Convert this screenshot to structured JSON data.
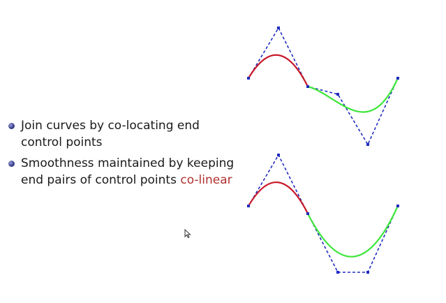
{
  "bullets": [
    {
      "line1": "Join curves by co-locating end",
      "line2": "control points",
      "line2_highlight": ""
    },
    {
      "line1": "Smoothness maintained by keeping",
      "line2": "end pairs of control points ",
      "line2_highlight": "co-linear"
    }
  ],
  "colors": {
    "first_curve": "#c8192b",
    "second_curve": "#3ee63a",
    "control_polygon": "#1f2bbf",
    "highlight_text": "#b0302e",
    "bullet": "#3c428f"
  },
  "icons": [
    "bullet-dot",
    "mouse-pointer-icon"
  ]
}
